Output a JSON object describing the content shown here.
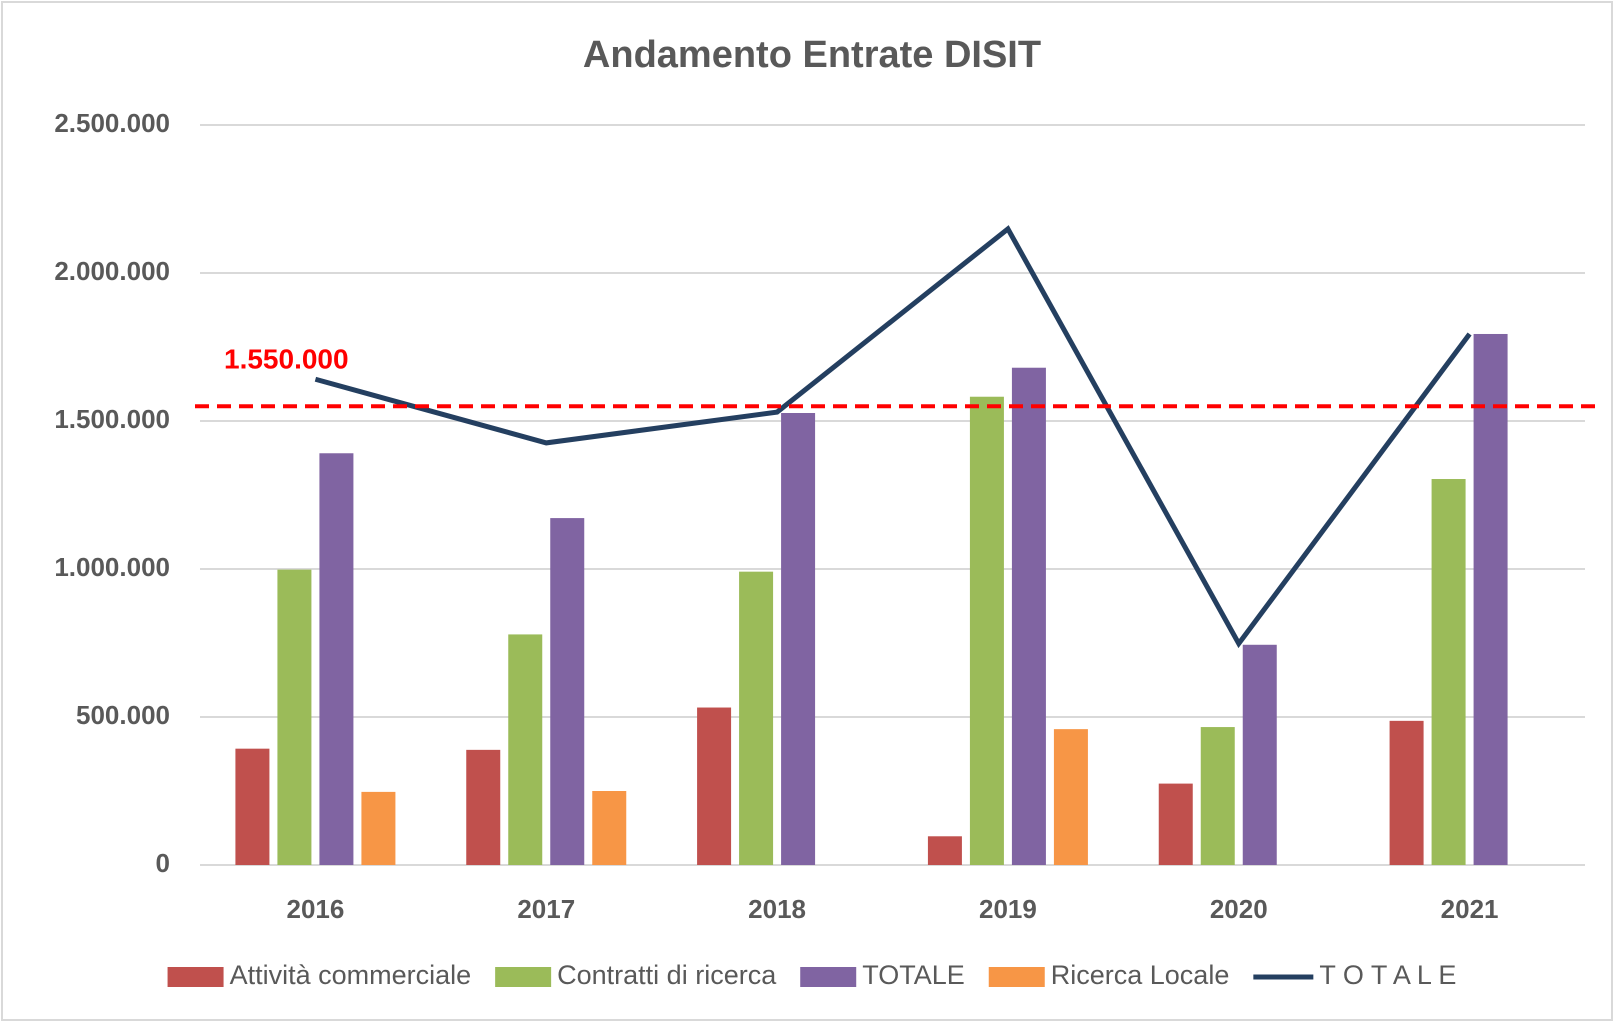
{
  "chart_data": {
    "type": "bar",
    "title": "Andamento Entrate DISIT",
    "categories": [
      "2016",
      "2017",
      "2018",
      "2019",
      "2020",
      "2021"
    ],
    "series": [
      {
        "name": "Attività commerciale",
        "color": "#c0504d",
        "values": [
          393000,
          389000,
          532000,
          97000,
          275000,
          487000
        ]
      },
      {
        "name": "Contratti di ricerca",
        "color": "#9bbb59",
        "values": [
          998000,
          779000,
          991000,
          1582000,
          466000,
          1304000
        ]
      },
      {
        "name": "TOTALE",
        "color": "#8064a2",
        "values": [
          1391000,
          1172000,
          1527000,
          1680000,
          744000,
          1794000
        ]
      },
      {
        "name": "Ricerca Locale",
        "color": "#f79646",
        "values": [
          247000,
          250000,
          null,
          459000,
          null,
          null
        ]
      },
      {
        "name": "T O T A L E",
        "type": "line",
        "color": "#243f60",
        "values": [
          1641000,
          1426000,
          1530000,
          2149000,
          748000,
          1794000
        ]
      }
    ],
    "reference_line": {
      "value": 1550000,
      "label": "1.550.000",
      "color": "#ff0000"
    },
    "ylim": [
      0,
      2500000
    ],
    "yticks": [
      0,
      {
        "value": 500000,
        "label": "500.000"
      },
      {
        "value": 1000000,
        "label": "1.000.000"
      },
      {
        "value": 1500000,
        "label": "1.500.000"
      },
      {
        "value": 2000000,
        "label": "2.000.000"
      },
      {
        "value": 2500000,
        "label": "2.500.000"
      }
    ],
    "grid": true,
    "legend": "bottom"
  }
}
